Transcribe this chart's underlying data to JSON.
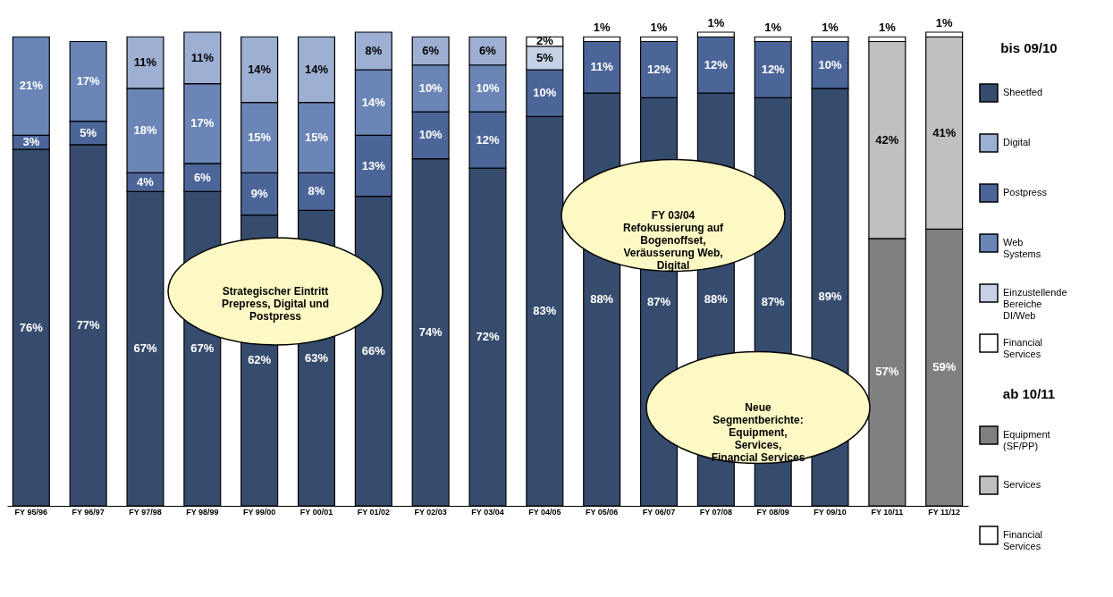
{
  "chart_data": {
    "type": "bar",
    "stacked": true,
    "legend": "right",
    "legend_title": "bis 09/10",
    "tick_labels": "x",
    "grid": false,
    "categories": [
      "FY 95/96",
      "FY 96/97",
      "FY 97/98",
      "FY 98/99",
      "FY 99/00",
      "FY 00/01",
      "FY 01/02",
      "FY 02/03",
      "FY 03/04",
      "FY 04/05",
      "FY 05/06",
      "FY 06/07",
      "FY 07/08",
      "FY 08/09",
      "FY 09/10",
      "FY 10/11",
      "FY 11/12"
    ],
    "series": [
      {
        "name": "Sheetfed",
        "color": "#364c6e",
        "values": [
          76,
          77,
          67,
          67,
          62,
          63,
          66,
          74,
          72,
          83,
          88,
          87,
          88,
          87,
          89,
          null,
          null
        ],
        "value_labels": [
          "76%",
          "77%",
          "67%",
          "67%",
          "62%",
          "63%",
          "66%",
          "74%",
          "72%",
          "83%",
          "88%",
          "87%",
          "88%",
          "87%",
          "89%",
          null,
          null
        ]
      },
      {
        "name": "Postpress",
        "color": "#4c6598",
        "values": [
          3,
          5,
          4,
          6,
          9,
          8,
          13,
          10,
          12,
          10,
          11,
          12,
          12,
          12,
          10,
          null,
          null
        ],
        "value_labels": [
          "3%",
          "5%",
          "4%",
          "6%",
          "9%",
          "8%",
          "13%",
          "10%",
          "12%",
          "10%",
          "11%",
          "12%",
          "12%",
          "12%",
          "10%",
          null,
          null
        ]
      },
      {
        "name": "Web Systems",
        "color": "#6a85b6",
        "values": [
          21,
          17,
          18,
          17,
          15,
          15,
          14,
          10,
          10,
          null,
          null,
          null,
          null,
          null,
          null,
          null,
          null
        ],
        "value_labels": [
          "21%",
          "17%",
          "18%",
          "17%",
          "15%",
          "15%",
          "14%",
          "10%",
          "10%",
          null,
          null,
          null,
          null,
          null,
          null,
          null,
          null
        ]
      },
      {
        "name": "Digital",
        "color": "#9dafd2",
        "values": [
          null,
          null,
          11,
          11,
          14,
          14,
          8,
          6,
          6,
          null,
          null,
          null,
          null,
          null,
          null,
          null,
          null
        ],
        "value_labels": [
          null,
          null,
          "11%",
          "11%",
          "14%",
          "14%",
          "8%",
          "6%",
          "6%",
          null,
          null,
          null,
          null,
          null,
          null,
          null,
          null
        ]
      },
      {
        "name": "Einzustellende Bereiche DI/Web",
        "color": "#c6d1e6",
        "values": [
          null,
          null,
          null,
          null,
          null,
          null,
          null,
          null,
          null,
          5,
          null,
          null,
          null,
          null,
          null,
          null,
          null
        ],
        "value_labels": [
          null,
          null,
          null,
          null,
          null,
          null,
          null,
          null,
          null,
          "5%",
          null,
          null,
          null,
          null,
          null,
          null,
          null
        ]
      },
      {
        "name": "Financial Services",
        "color": "#ffffff",
        "values": [
          null,
          null,
          null,
          null,
          null,
          null,
          null,
          null,
          null,
          2,
          1,
          1,
          1,
          1,
          1,
          null,
          null
        ],
        "value_labels": [
          null,
          null,
          null,
          null,
          null,
          null,
          null,
          null,
          null,
          "2%",
          "1%",
          "1%",
          "1%",
          "1%",
          "1%",
          null,
          null
        ]
      },
      {
        "name": "Equipment (SF/PP)",
        "color": "#808080",
        "values": [
          null,
          null,
          null,
          null,
          null,
          null,
          null,
          null,
          null,
          null,
          null,
          null,
          null,
          null,
          null,
          57,
          59
        ],
        "value_labels": [
          null,
          null,
          null,
          null,
          null,
          null,
          null,
          null,
          null,
          null,
          null,
          null,
          null,
          null,
          null,
          "57%",
          "59%"
        ]
      },
      {
        "name": "Services",
        "color": "#c0c0c0",
        "values": [
          null,
          null,
          null,
          null,
          null,
          null,
          null,
          null,
          null,
          null,
          null,
          null,
          null,
          null,
          null,
          42,
          41
        ],
        "value_labels": [
          null,
          null,
          null,
          null,
          null,
          null,
          null,
          null,
          null,
          null,
          null,
          null,
          null,
          null,
          null,
          "42%",
          "41%"
        ]
      },
      {
        "name": "Financial Services",
        "color": "#ffffff",
        "values": [
          null,
          null,
          null,
          null,
          null,
          null,
          null,
          null,
          null,
          null,
          null,
          null,
          null,
          null,
          null,
          1,
          1
        ],
        "value_labels": [
          null,
          null,
          null,
          null,
          null,
          null,
          null,
          null,
          null,
          null,
          null,
          null,
          null,
          null,
          null,
          "1%",
          "1%"
        ]
      }
    ],
    "annotations": [
      "Strategischer Eintritt\nPrepress, Digital und\nPostpress",
      "FY 03/04\nRefokussierung auf\nBogenoffset,\nVeräusserung Web,\nDigital",
      "Neue\nSegmentberichte:\nEquipment,\nServices,\nFinancial Services",
      "ab 10/11"
    ]
  }
}
